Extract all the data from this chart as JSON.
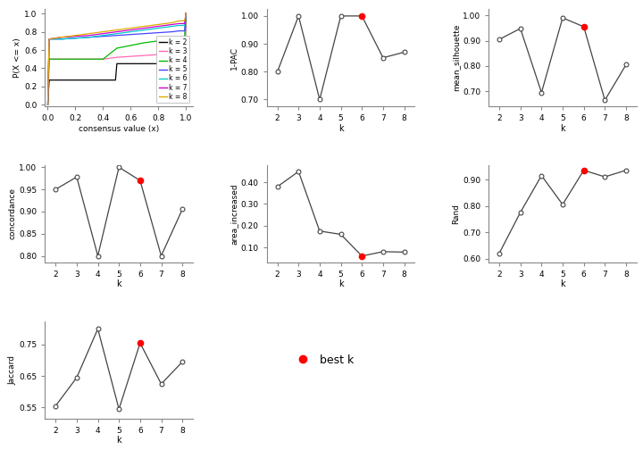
{
  "ecdf_lines": {
    "k2": {
      "color": "#000000",
      "x": [
        0,
        0.01,
        0.02,
        0.05,
        0.1,
        0.2,
        0.3,
        0.4,
        0.49,
        0.5,
        0.6,
        0.7,
        0.8,
        0.9,
        0.95,
        0.99,
        1.0
      ],
      "y": [
        0,
        0.27,
        0.27,
        0.27,
        0.27,
        0.27,
        0.27,
        0.27,
        0.27,
        0.45,
        0.45,
        0.45,
        0.45,
        0.45,
        0.45,
        0.45,
        1.0
      ]
    },
    "k3": {
      "color": "#FF69B4",
      "x": [
        0,
        0.01,
        0.05,
        0.1,
        0.2,
        0.3,
        0.4,
        0.5,
        0.6,
        0.7,
        0.8,
        0.9,
        0.95,
        0.99,
        1.0
      ],
      "y": [
        0,
        0.5,
        0.5,
        0.5,
        0.5,
        0.5,
        0.5,
        0.52,
        0.53,
        0.54,
        0.55,
        0.56,
        0.57,
        0.57,
        1.0
      ]
    },
    "k4": {
      "color": "#00BB00",
      "x": [
        0,
        0.01,
        0.05,
        0.1,
        0.2,
        0.3,
        0.35,
        0.4,
        0.5,
        0.6,
        0.7,
        0.8,
        0.9,
        0.95,
        0.99,
        1.0
      ],
      "y": [
        0,
        0.5,
        0.5,
        0.5,
        0.5,
        0.5,
        0.5,
        0.5,
        0.62,
        0.65,
        0.68,
        0.7,
        0.72,
        0.74,
        0.74,
        1.0
      ]
    },
    "k5": {
      "color": "#4444FF",
      "x": [
        0,
        0.01,
        0.05,
        0.1,
        0.2,
        0.3,
        0.4,
        0.5,
        0.6,
        0.7,
        0.8,
        0.9,
        0.95,
        0.99,
        1.0
      ],
      "y": [
        0,
        0.72,
        0.72,
        0.72,
        0.73,
        0.74,
        0.75,
        0.76,
        0.77,
        0.78,
        0.79,
        0.8,
        0.81,
        0.81,
        1.0
      ]
    },
    "k6": {
      "color": "#00CCCC",
      "x": [
        0,
        0.01,
        0.05,
        0.1,
        0.2,
        0.3,
        0.4,
        0.5,
        0.6,
        0.7,
        0.8,
        0.9,
        0.95,
        0.99,
        1.0
      ],
      "y": [
        0,
        0.72,
        0.72,
        0.72,
        0.73,
        0.74,
        0.76,
        0.78,
        0.8,
        0.82,
        0.84,
        0.86,
        0.87,
        0.87,
        1.0
      ]
    },
    "k7": {
      "color": "#CC00CC",
      "x": [
        0,
        0.01,
        0.05,
        0.1,
        0.2,
        0.3,
        0.4,
        0.5,
        0.6,
        0.7,
        0.8,
        0.9,
        0.95,
        0.99,
        1.0
      ],
      "y": [
        0,
        0.72,
        0.73,
        0.74,
        0.75,
        0.76,
        0.78,
        0.8,
        0.82,
        0.84,
        0.86,
        0.88,
        0.89,
        0.89,
        1.0
      ]
    },
    "k8": {
      "color": "#DDAA00",
      "x": [
        0,
        0.01,
        0.05,
        0.1,
        0.2,
        0.3,
        0.4,
        0.5,
        0.6,
        0.7,
        0.8,
        0.9,
        0.95,
        0.99,
        1.0
      ],
      "y": [
        0,
        0.72,
        0.73,
        0.74,
        0.76,
        0.78,
        0.8,
        0.82,
        0.84,
        0.86,
        0.88,
        0.9,
        0.92,
        0.92,
        1.0
      ]
    }
  },
  "pac": {
    "k": [
      2,
      3,
      4,
      5,
      6,
      7,
      8
    ],
    "y": [
      0.8,
      1.0,
      0.7,
      1.0,
      1.0,
      0.85,
      0.87
    ],
    "best_k": 6,
    "yticks": [
      0.7,
      0.8,
      0.9,
      1.0
    ],
    "ylim": [
      0.675,
      1.025
    ],
    "ylabel": "1-PAC"
  },
  "mean_sil": {
    "k": [
      2,
      3,
      4,
      5,
      6,
      7,
      8
    ],
    "y": [
      0.905,
      0.948,
      0.695,
      0.99,
      0.955,
      0.665,
      0.805
    ],
    "best_k": 6,
    "yticks": [
      0.7,
      0.8,
      0.9,
      1.0
    ],
    "ylim": [
      0.64,
      1.025
    ],
    "ylabel": "mean_silhouette"
  },
  "concordance": {
    "k": [
      2,
      3,
      4,
      5,
      6,
      7,
      8
    ],
    "y": [
      0.95,
      0.978,
      0.8,
      1.0,
      0.97,
      0.8,
      0.905
    ],
    "best_k": 6,
    "yticks": [
      0.8,
      0.85,
      0.9,
      0.95,
      1.0
    ],
    "ylim": [
      0.785,
      1.005
    ],
    "ylabel": "concordance"
  },
  "area_increased": {
    "k": [
      2,
      3,
      4,
      5,
      6,
      7,
      8
    ],
    "y": [
      0.38,
      0.45,
      0.175,
      0.16,
      0.06,
      0.08,
      0.078
    ],
    "best_k": 6,
    "yticks": [
      0.1,
      0.2,
      0.3,
      0.4
    ],
    "ylim": [
      0.03,
      0.48
    ],
    "ylabel": "area_increased"
  },
  "rand": {
    "k": [
      2,
      3,
      4,
      5,
      6,
      7,
      8
    ],
    "y": [
      0.62,
      0.775,
      0.915,
      0.805,
      0.935,
      0.91,
      0.935
    ],
    "best_k": 6,
    "yticks": [
      0.6,
      0.7,
      0.8,
      0.9
    ],
    "ylim": [
      0.585,
      0.955
    ],
    "ylabel": "Rand"
  },
  "jaccard": {
    "k": [
      2,
      3,
      4,
      5,
      6,
      7,
      8
    ],
    "y": [
      0.555,
      0.645,
      0.8,
      0.545,
      0.755,
      0.625,
      0.695
    ],
    "best_k": 6,
    "yticks": [
      0.55,
      0.65,
      0.75
    ],
    "ylim": [
      0.515,
      0.825
    ],
    "ylabel": "Jaccard"
  },
  "background_color": "#FFFFFF",
  "line_color": "#444444",
  "open_dot_color": "#FFFFFF",
  "open_dot_edge": "#444444",
  "best_dot_color": "#FF0000",
  "legend_labels": [
    "k = 2",
    "k = 3",
    "k = 4",
    "k = 5",
    "k = 6",
    "k = 7",
    "k = 8"
  ],
  "legend_colors": [
    "#000000",
    "#FF69B4",
    "#00BB00",
    "#4444FF",
    "#00CCCC",
    "#CC00CC",
    "#DDAA00"
  ]
}
